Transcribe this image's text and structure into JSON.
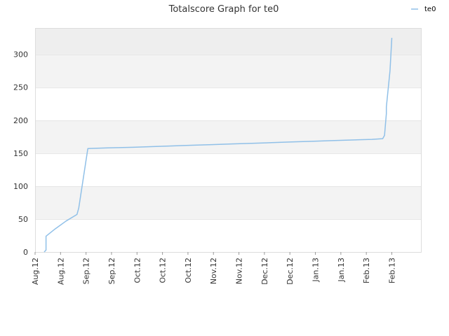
{
  "chart_data": {
    "type": "line",
    "title": "Totalscore Graph for te0",
    "xlabel": "",
    "ylabel": "",
    "legend": {
      "placement": "top-right",
      "entries": [
        "te0"
      ]
    },
    "grid": true,
    "ylim": [
      0,
      340
    ],
    "y_ticks": [
      0,
      50,
      100,
      150,
      200,
      250,
      300
    ],
    "x_tick_labels": [
      "Aug.12",
      "Aug.12",
      "Sep.12",
      "Sep.12",
      "Oct.12",
      "Oct.12",
      "Oct.12",
      "Nov.12",
      "Nov.12",
      "Dec.12",
      "Dec.12",
      "Jan.13",
      "Jan.13",
      "Feb.13",
      "Feb.13"
    ],
    "x_ticks": [
      "2012-08-01",
      "2012-08-15",
      "2012-08-29",
      "2012-09-12",
      "2012-09-26",
      "2012-10-10",
      "2012-10-24",
      "2012-11-07",
      "2012-11-21",
      "2012-12-05",
      "2012-12-19",
      "2013-01-02",
      "2013-01-16",
      "2013-01-30",
      "2013-02-13"
    ],
    "xlim": [
      "2012-08-01",
      "2013-03-01"
    ],
    "series": [
      {
        "name": "te0",
        "color": "#90c0e8",
        "x": [
          "2012-08-06",
          "2012-08-07",
          "2012-08-07",
          "2012-08-12",
          "2012-08-18",
          "2012-08-24",
          "2012-08-25",
          "2012-08-30",
          "2012-09-10",
          "2012-09-24",
          "2012-10-05",
          "2012-10-15",
          "2012-10-26",
          "2012-11-06",
          "2012-11-17",
          "2012-11-28",
          "2012-12-09",
          "2012-12-20",
          "2012-12-31",
          "2013-01-11",
          "2013-01-22",
          "2013-02-02",
          "2013-02-08",
          "2013-02-09",
          "2013-02-10",
          "2013-02-10",
          "2013-02-12",
          "2013-02-13"
        ],
        "values": [
          0,
          3,
          24,
          35,
          47,
          57,
          67,
          157,
          158,
          159,
          160,
          161,
          162,
          163,
          164,
          165,
          166,
          167,
          168,
          169,
          170,
          171,
          172,
          177,
          210,
          220,
          275,
          325
        ]
      }
    ]
  }
}
